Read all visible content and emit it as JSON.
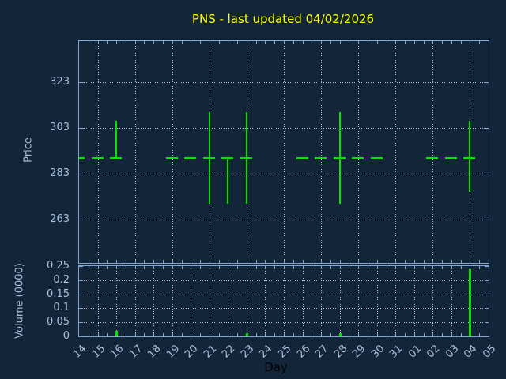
{
  "title": "PNS - last updated 04/02/2026",
  "colors": {
    "background": "#122539",
    "axis_border": "#81a7d2",
    "tick_label": "#a7c0dc",
    "grid_dots": "#b9c1c9",
    "series_green": "#00e400",
    "title_yellow": "#ffff00",
    "xlabel_color": "#000000"
  },
  "chart_data": [
    {
      "type": "financial-bars",
      "panel": "price",
      "title": "PNS - last updated 04/02/2026",
      "xlabel": "Day",
      "ylabel": "Price",
      "ylim": [
        244,
        341
      ],
      "yticks": [
        263,
        283,
        303,
        323
      ],
      "x_categories": [
        "14",
        "15",
        "16",
        "17",
        "18",
        "19",
        "20",
        "21",
        "22",
        "23",
        "24",
        "25",
        "26",
        "27",
        "28",
        "29",
        "30",
        "31",
        "01",
        "02",
        "03",
        "04",
        "05"
      ],
      "grid": "dotted; vertical gridlines every 2nd day; legend none",
      "points": [
        {
          "day": "14",
          "price": 290
        },
        {
          "day": "15",
          "price": 290
        },
        {
          "day": "16",
          "price": 290,
          "high": 306
        },
        {
          "day": "19",
          "price": 290
        },
        {
          "day": "20",
          "price": 290
        },
        {
          "day": "21",
          "price": 290,
          "high": 310,
          "low": 270
        },
        {
          "day": "22",
          "price": 290,
          "low": 270
        },
        {
          "day": "23",
          "price": 290,
          "high": 310,
          "low": 270
        },
        {
          "day": "26",
          "price": 290
        },
        {
          "day": "27",
          "price": 290
        },
        {
          "day": "28",
          "price": 290,
          "high": 310,
          "low": 270
        },
        {
          "day": "29",
          "price": 290
        },
        {
          "day": "30",
          "price": 290
        },
        {
          "day": "02",
          "price": 290
        },
        {
          "day": "03",
          "price": 290
        },
        {
          "day": "04",
          "price": 290,
          "high": 306,
          "low": 275
        }
      ]
    },
    {
      "type": "bar",
      "panel": "volume",
      "ylabel": "Volume (0000)",
      "ylim": [
        0,
        0.25
      ],
      "yticks": [
        0,
        0.05,
        0.1,
        0.15,
        0.2,
        0.25
      ],
      "grid": "dotted; vertical gridlines every day; legend none",
      "bars": [
        {
          "day": "16",
          "value": 0.02
        },
        {
          "day": "23",
          "value": 0.01
        },
        {
          "day": "28",
          "value": 0.01
        },
        {
          "day": "04",
          "value": 0.24
        }
      ]
    }
  ]
}
